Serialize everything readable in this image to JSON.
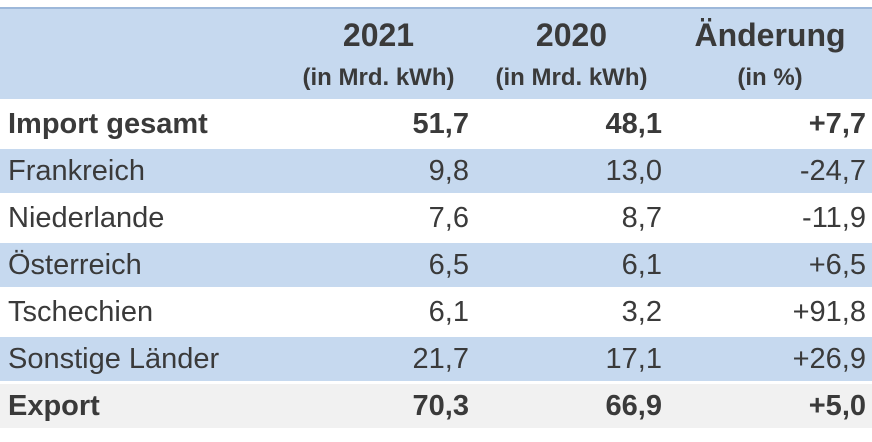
{
  "chart_data": {
    "type": "table",
    "title": "",
    "columns": [
      {
        "label": "",
        "sublabel": ""
      },
      {
        "label": "2021",
        "sublabel": "(in Mrd. kWh)"
      },
      {
        "label": "2020",
        "sublabel": "(in Mrd. kWh)"
      },
      {
        "label": "Änderung",
        "sublabel": "(in %)"
      }
    ],
    "rows": [
      {
        "label": "Import gesamt",
        "y2021": "51,7",
        "y2020": "48,1",
        "change": "+7,7",
        "emphasis": "bold",
        "style": "row-white"
      },
      {
        "label": "Frankreich",
        "y2021": "9,8",
        "y2020": "13,0",
        "change": "-24,7",
        "emphasis": "normal",
        "style": "row-blue"
      },
      {
        "label": "Niederlande",
        "y2021": "7,6",
        "y2020": "8,7",
        "change": "-11,9",
        "emphasis": "normal",
        "style": "row-white"
      },
      {
        "label": "Österreich",
        "y2021": "6,5",
        "y2020": "6,1",
        "change": "+6,5",
        "emphasis": "normal",
        "style": "row-blue"
      },
      {
        "label": "Tschechien",
        "y2021": "6,1",
        "y2020": "3,2",
        "change": "+91,8",
        "emphasis": "normal",
        "style": "row-white"
      },
      {
        "label": "Sonstige Länder",
        "y2021": "21,7",
        "y2020": "17,1",
        "change": "+26,9",
        "emphasis": "normal",
        "style": "row-blue"
      },
      {
        "label": "Export",
        "y2021": "70,3",
        "y2020": "66,9",
        "change": "+5,0",
        "emphasis": "bold",
        "style": "row-gray"
      }
    ]
  },
  "colors": {
    "header_bg": "#c6d9ef",
    "row_blue": "#c6d9ef",
    "row_white": "#ffffff",
    "row_gray": "#f1f1f1",
    "border_top": "#9db8da",
    "text": "#3a3a3a"
  }
}
